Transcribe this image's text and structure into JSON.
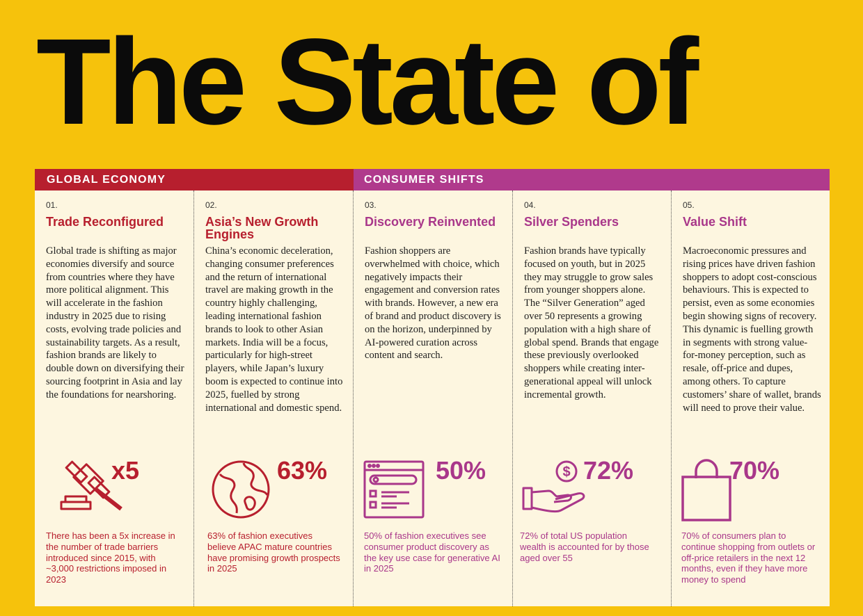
{
  "title": "The State of",
  "sections": {
    "global_economy": "GLOBAL ECONOMY",
    "consumer_shifts": "CONSUMER SHIFTS"
  },
  "colors": {
    "background": "#f6c20c",
    "red": "#b71f2e",
    "pink": "#a9378a",
    "panel": "#fdf6e0"
  },
  "columns": [
    {
      "num": "01.",
      "heading": "Trade Reconfigured",
      "body": "Global trade is shifting as major economies diversify and source from countries where they have more political alignment. This will accelerate in the fashion industry in 2025 due to rising costs, evolving trade policies and sustainability targets. As a result, fashion brands are likely to double down on diversifying their sourcing footprint in Asia and lay the foundations for nearshoring.",
      "icon": "gavel-icon",
      "stat": "x5",
      "footnote": "There has been a 5x increase in the number of trade barriers introduced since 2015, with ~3,000 restrictions imposed in 2023"
    },
    {
      "num": "02.",
      "heading": "Asia’s New Growth Engines",
      "body": "China’s economic deceleration, changing consumer preferences and the return of international travel are making growth in the country highly challenging, leading international fashion brands to look to other Asian markets. India will be a focus, particularly for high-street players, while Japan’s luxury boom is expected to continue into 2025, fuelled by strong international and domestic spend.",
      "icon": "globe-icon",
      "stat": "63%",
      "footnote": "63% of fashion executives believe APAC mature countries have promising growth prospects in 2025"
    },
    {
      "num": "03.",
      "heading": "Discovery Reinvented",
      "body": "Fashion shoppers are overwhelmed with choice, which negatively impacts their engagement and conversion rates with brands. However, a new era of brand and product discovery is on the horizon, underpinned by AI-powered curation across content and search.",
      "icon": "browser-search-icon",
      "stat": "50%",
      "footnote": "50% of fashion executives see consumer product discovery as the key use case for generative AI in 2025"
    },
    {
      "num": "04.",
      "heading": "Silver Spenders",
      "body": "Fashion brands have typically focused on youth, but in 2025 they may struggle to grow sales from younger shoppers alone. The “Silver Generation” aged over 50 represents a growing population with a high share of global spend. Brands that engage these previously overlooked shoppers while creating inter-generational appeal will unlock incremental growth.",
      "icon": "hand-coin-icon",
      "stat": "72%",
      "footnote": "72% of total US population wealth is accounted for by those aged over 55"
    },
    {
      "num": "05.",
      "heading": "Value Shift",
      "body": "Macroeconomic pressures and rising prices have driven fashion shoppers to adopt cost-conscious behaviours. This is expected to persist, even as some economies begin showing signs of recovery. This dynamic is fuelling growth in segments with strong value-for-money perception, such as resale, off-price and dupes, among others. To capture customers’ share of wallet, brands will need to prove their value.",
      "icon": "shopping-bag-icon",
      "stat": "70%",
      "footnote": "70% of consumers plan to continue shopping from outlets or off-price retailers in the next 12 months, even if they have more money to spend"
    }
  ]
}
